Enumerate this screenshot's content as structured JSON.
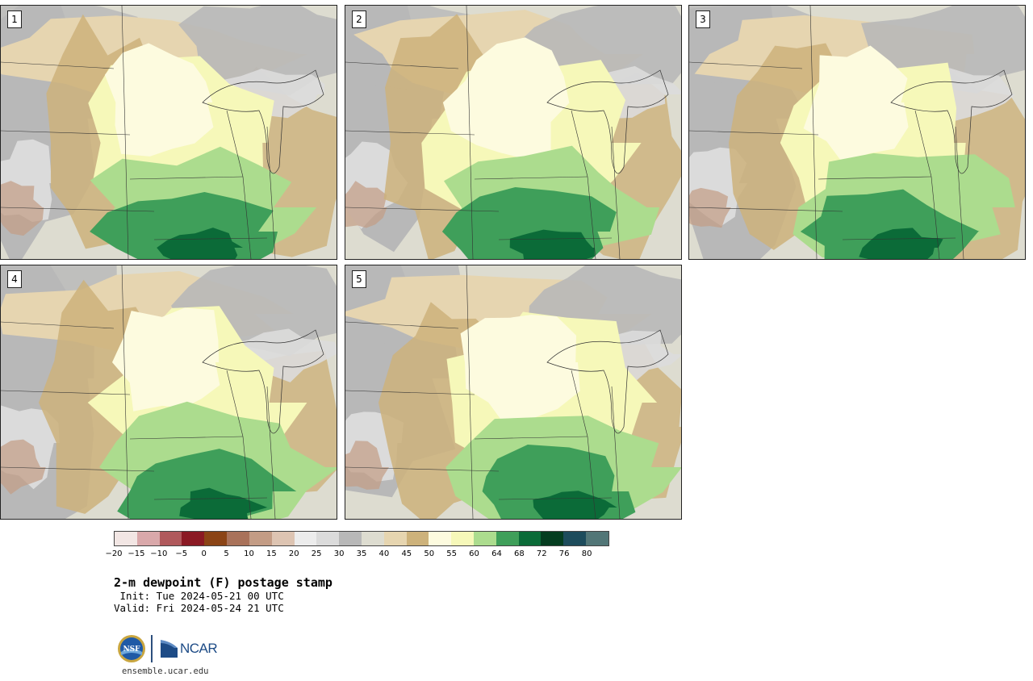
{
  "panels": [
    {
      "label": "1",
      "seed": 11,
      "variant": 0
    },
    {
      "label": "2",
      "seed": 23,
      "variant": 1
    },
    {
      "label": "3",
      "seed": 37,
      "variant": 2
    },
    {
      "label": "4",
      "seed": 41,
      "variant": 3
    },
    {
      "label": "5",
      "seed": 53,
      "variant": 4
    }
  ],
  "colorbar": {
    "colors": [
      "#f2e6e4",
      "#d9a8aa",
      "#b0595c",
      "#8b1a24",
      "#8b4416",
      "#a9725a",
      "#c39c85",
      "#ddc4b2",
      "#ececec",
      "#dbdbdb",
      "#b8b8b8",
      "#dddcd0",
      "#e6d5b0",
      "#cdb27b",
      "#fdfbdf",
      "#f6f8b9",
      "#acdc8e",
      "#3f9f5a",
      "#0b6b38",
      "#053d20",
      "#1d4c5c",
      "#527677"
    ],
    "ticks": [
      "−20",
      "−15",
      "−10",
      "−5",
      "0",
      "5",
      "10",
      "15",
      "20",
      "25",
      "30",
      "35",
      "40",
      "45",
      "50",
      "55",
      "60",
      "64",
      "68",
      "72",
      "76",
      "80"
    ]
  },
  "title": "2-m dewpoint (F) postage stamp",
  "init": " Init: Tue 2024-05-21 00 UTC",
  "valid": "Valid: Fri 2024-05-24 21 UTC",
  "site": "ensemble.ucar.edu",
  "logo_text": "NCAR"
}
